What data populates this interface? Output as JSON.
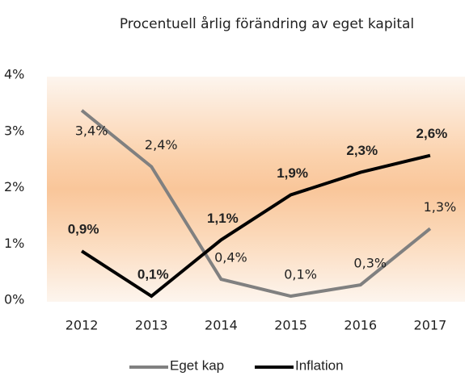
{
  "chart_data": {
    "type": "line",
    "title": "Procentuell årlig förändring av eget kapital",
    "categories": [
      "2012",
      "2013",
      "2014",
      "2015",
      "2016",
      "2017"
    ],
    "series": [
      {
        "name": "Eget kap",
        "color": "#808080",
        "values": [
          3.4,
          2.4,
          0.4,
          0.1,
          0.3,
          1.3
        ],
        "value_labels": [
          "3,4%",
          "2,4%",
          "0,4%",
          "0,1%",
          "0,3%",
          "1,3%"
        ]
      },
      {
        "name": "Inflation",
        "color": "#000000",
        "values": [
          0.9,
          0.1,
          1.1,
          1.9,
          2.3,
          2.6
        ],
        "value_labels": [
          "0,9%",
          "0,1%",
          "1,1%",
          "1,9%",
          "2,3%",
          "2,6%"
        ]
      }
    ],
    "ylim": [
      0,
      4
    ],
    "yticks": [
      {
        "value": 0,
        "label": "0%"
      },
      {
        "value": 1,
        "label": "1%"
      },
      {
        "value": 2,
        "label": "2%"
      },
      {
        "value": 3,
        "label": "3%"
      },
      {
        "value": 4,
        "label": "4%"
      }
    ],
    "legend": "bottom"
  }
}
